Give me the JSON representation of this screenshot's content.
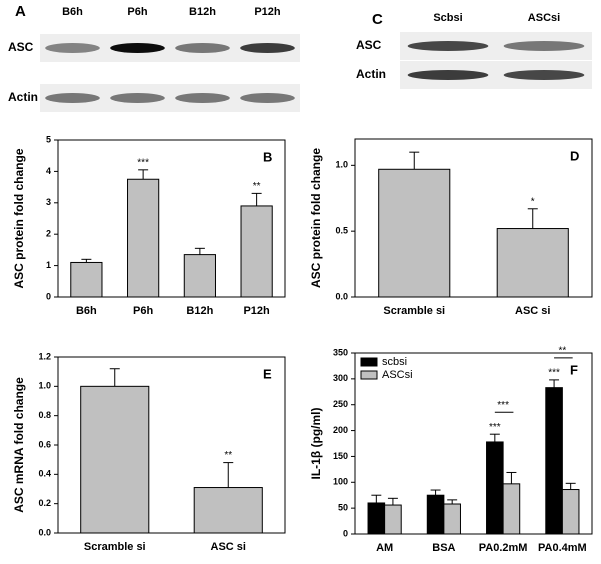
{
  "blots": [
    {
      "label": "A",
      "lanes": [
        "B6h",
        "P6h",
        "B12h",
        "P12h"
      ],
      "rows": [
        "ASC",
        "Actin"
      ]
    },
    {
      "label": "C",
      "lanes": [
        "Scbsi",
        "ASCsi"
      ],
      "rows": [
        "ASC",
        "Actin"
      ]
    }
  ],
  "chart_data": [
    {
      "type": "bar",
      "label": "B",
      "ylabel": "ASC protein fold change",
      "categories": [
        "B6h",
        "P6h",
        "B12h",
        "P12h"
      ],
      "values": [
        1.1,
        3.75,
        1.35,
        2.9
      ],
      "errors": [
        0.1,
        0.3,
        0.2,
        0.4
      ],
      "significance": [
        null,
        "***",
        null,
        "**"
      ],
      "color": "#c0c0c0",
      "ylim": [
        0,
        5
      ],
      "yticks": [
        0,
        1,
        2,
        3,
        4,
        5
      ]
    },
    {
      "type": "bar",
      "label": "D",
      "ylabel": "ASC protein fold change",
      "categories": [
        "Scramble si",
        "ASC si"
      ],
      "values": [
        0.97,
        0.52
      ],
      "errors": [
        0.13,
        0.15
      ],
      "significance": [
        null,
        "*"
      ],
      "color": "#c0c0c0",
      "ylim": [
        0,
        1.2
      ],
      "yticks": [
        {
          "value": 0,
          "label": "0.0"
        },
        {
          "value": 0.5,
          "label": "0.5"
        },
        {
          "value": 1,
          "label": "1.0"
        }
      ]
    },
    {
      "type": "bar",
      "label": "E",
      "ylabel": "ASC mRNA fold change",
      "categories": [
        "Scramble si",
        "ASC si"
      ],
      "values": [
        1.0,
        0.31
      ],
      "errors": [
        0.12,
        0.17
      ],
      "significance": [
        null,
        "**"
      ],
      "color": "#c0c0c0",
      "ylim": [
        0,
        1.2
      ],
      "yticks": [
        {
          "value": 0,
          "label": "0.0"
        },
        {
          "value": 0.2,
          "label": "0.2"
        },
        {
          "value": 0.4,
          "label": "0.4"
        },
        {
          "value": 0.6,
          "label": "0.6"
        },
        {
          "value": 0.8,
          "label": "0.8"
        },
        {
          "value": 1,
          "label": "1.0"
        },
        {
          "value": 1.2,
          "label": "1.2"
        }
      ]
    },
    {
      "type": "bar",
      "label": "F",
      "ylabel": "IL-1β (pg/ml)",
      "categories": [
        "AM",
        "BSA",
        "PA0.2mM",
        "PA0.4mM"
      ],
      "series": [
        {
          "name": "scbsi",
          "color": "#000000",
          "values": [
            60,
            75,
            178,
            283
          ],
          "errors": [
            15,
            10,
            15,
            15
          ],
          "significance": [
            null,
            null,
            "***",
            "***"
          ]
        },
        {
          "name": "ASCsi",
          "color": "#c0c0c0",
          "values": [
            56,
            58,
            97,
            86
          ],
          "errors": [
            13,
            8,
            22,
            12
          ],
          "significance": [
            null,
            null,
            null,
            null
          ]
        }
      ],
      "comparisons": [
        null,
        null,
        "***",
        "**"
      ],
      "ylim": [
        0,
        350
      ],
      "yticks": [
        0,
        50,
        100,
        150,
        200,
        250,
        300,
        350
      ]
    }
  ]
}
